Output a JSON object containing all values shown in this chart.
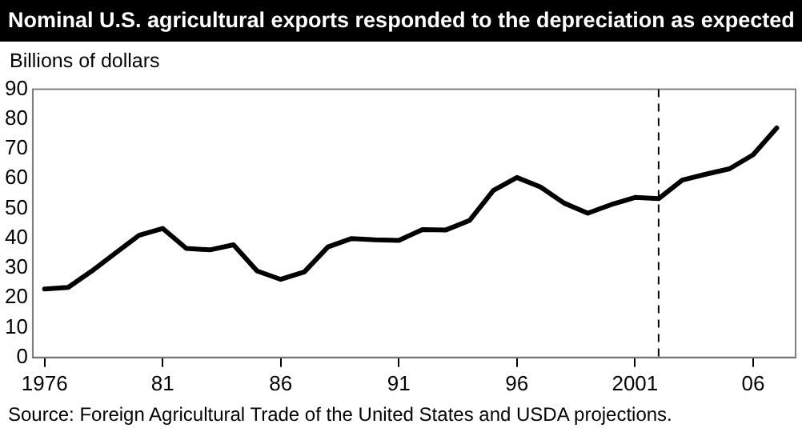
{
  "chart_data": {
    "type": "line",
    "title": "Nominal U.S. agricultural exports responded to the depreciation as expected",
    "ylabel": "Billions of dollars",
    "annotations": [
      "Source: Foreign Agricultural Trade of the United States and USDA projections."
    ],
    "x": [
      1976,
      1977,
      1978,
      1979,
      1980,
      1981,
      1982,
      1983,
      1984,
      1985,
      1986,
      1987,
      1988,
      1989,
      1990,
      1991,
      1992,
      1993,
      1994,
      1995,
      1996,
      1997,
      1998,
      1999,
      2000,
      2001,
      2002,
      2003,
      2004,
      2005,
      2006,
      2007
    ],
    "series": [
      {
        "color": "#000000",
        "values": [
          23,
          23.5,
          29,
          35,
          41,
          43.3,
          36.6,
          36.1,
          37.8,
          29,
          26.2,
          28.7,
          37.1,
          39.9,
          39.5,
          39.3,
          42.9,
          42.8,
          46,
          56,
          60.4,
          57.2,
          51.8,
          48.4,
          51.3,
          53.7,
          53.3,
          59.5,
          61.5,
          63.3,
          68,
          77
        ]
      }
    ],
    "xlim": [
      1975.5,
      2007.8
    ],
    "ylim": [
      0,
      90
    ],
    "xticks": [
      1976,
      {
        "value": 1981,
        "label": "81"
      },
      {
        "value": 1986,
        "label": "86"
      },
      {
        "value": 1991,
        "label": "91"
      },
      {
        "value": 1996,
        "label": "96"
      },
      2001,
      {
        "value": 2006,
        "label": "06"
      }
    ],
    "yticks": [
      0,
      10,
      20,
      30,
      40,
      50,
      60,
      70,
      80,
      90
    ],
    "ref_lines": [
      {
        "axis": "x",
        "value": 2002,
        "color": "#000000",
        "line_style": "dashed"
      }
    ],
    "grid": false,
    "legend": false,
    "marker": "none",
    "line_style": "solid"
  }
}
